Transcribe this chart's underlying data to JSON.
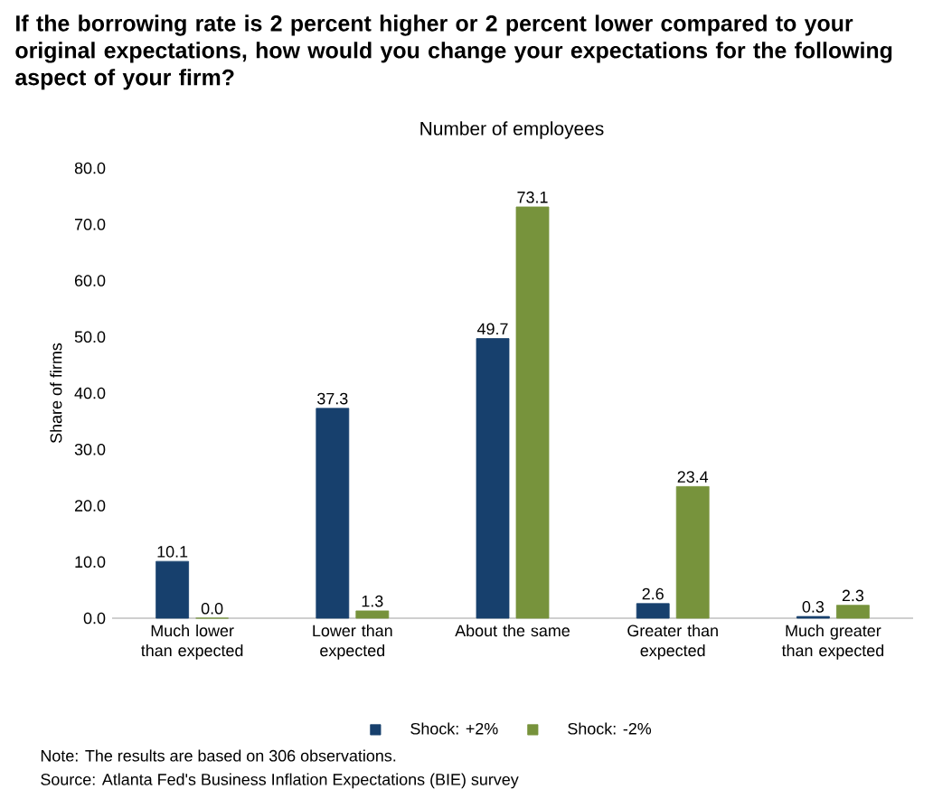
{
  "chart_data": {
    "type": "bar",
    "title": "If the borrowing rate is 2 percent higher or 2 percent lower compared to your original expectations, how would you change your expectations for the following aspect of your firm?",
    "subtitle": "Number of employees",
    "ylabel": "Share of firms",
    "categories": [
      "Much lower than expected",
      "Lower than expected",
      "About the same",
      "Greater than expected",
      "Much greater than expected"
    ],
    "series": [
      {
        "name": "Shock: +2%",
        "color": "#17406d",
        "values": [
          10.1,
          37.3,
          49.7,
          2.6,
          0.3
        ],
        "value_labels": [
          "10.1",
          "37.3",
          "49.7",
          "2.6",
          "0.3"
        ]
      },
      {
        "name": "Shock: -2%",
        "color": "#77933c",
        "values": [
          0.0,
          1.3,
          73.1,
          23.4,
          2.3
        ],
        "value_labels": [
          "0.0",
          "1.3",
          "73.1",
          "23.4",
          "2.3"
        ]
      }
    ],
    "ylim": [
      0,
      80
    ],
    "yticks": [
      {
        "value": 0,
        "label": "0.0"
      },
      {
        "value": 10,
        "label": "10.0"
      },
      {
        "value": 20,
        "label": "20.0"
      },
      {
        "value": 30,
        "label": "30.0"
      },
      {
        "value": 40,
        "label": "40.0"
      },
      {
        "value": 50,
        "label": "50.0"
      },
      {
        "value": 60,
        "label": "60.0"
      },
      {
        "value": 70,
        "label": "70.0"
      },
      {
        "value": 80,
        "label": "80.0"
      }
    ],
    "legend": "bottom",
    "annotations": [
      "Note: The results are based on 306 observations.",
      "Source: Atlanta Fed's Business Inflation Expectations (BIE) survey"
    ]
  }
}
